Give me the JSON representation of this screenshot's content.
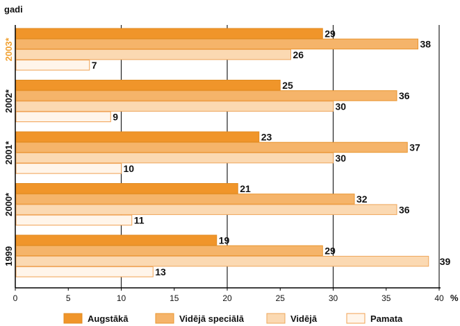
{
  "chart_data": {
    "type": "bar",
    "orientation": "horizontal",
    "ylabel": "gadi",
    "xlabel": "%",
    "xlim": [
      0,
      40
    ],
    "x_ticks": [
      "0",
      "5",
      "10",
      "15",
      "20",
      "25",
      "30",
      "35",
      "40"
    ],
    "categories": [
      "2003*",
      "2002*",
      "2001*",
      "2000*",
      "1999"
    ],
    "highlight_category_color": "#f0a030",
    "series": [
      {
        "name": "Augstākā",
        "values": [
          29,
          25,
          23,
          21,
          19
        ],
        "color": "#f0952a",
        "border": "#e08a20"
      },
      {
        "name": "Vidējā speciālā",
        "values": [
          38,
          36,
          37,
          32,
          29
        ],
        "color": "#f5b46a",
        "border": "#e9952f"
      },
      {
        "name": "Vidējā",
        "values": [
          26,
          30,
          30,
          36,
          39
        ],
        "color": "#fbd9b2",
        "border": "#eea65a"
      },
      {
        "name": "Pamata",
        "values": [
          7,
          9,
          10,
          11,
          13
        ],
        "color": "#fff5ea",
        "border": "#f0a050"
      }
    ],
    "value_labels": [
      [
        "29",
        "25",
        "23",
        "21",
        "19"
      ],
      [
        "38",
        "36",
        "37",
        "32",
        "29"
      ],
      [
        "26",
        "30",
        "30",
        "36",
        "39"
      ],
      [
        "7",
        "9",
        "10",
        "11",
        "13"
      ]
    ],
    "grid": true,
    "legend_position": "bottom"
  }
}
